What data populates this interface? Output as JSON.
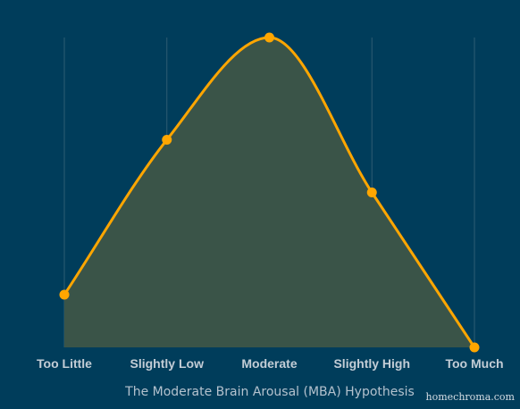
{
  "chart_data": {
    "type": "area",
    "title": "The Moderate Brain Arousal (MBA) Hypothesis",
    "xlabel": "",
    "ylabel": "",
    "categories": [
      "Too Little",
      "Slightly Low",
      "Moderate",
      "Slightly High",
      "Too Much"
    ],
    "series": [
      {
        "values": [
          17,
          67,
          100,
          50,
          0
        ]
      }
    ],
    "ylim": [
      0,
      100
    ],
    "grid": "vertical lines",
    "legend": "none",
    "smooth": true,
    "colors": {
      "background": "#003d5b",
      "line": "#ffa600",
      "marker": "#ffa600",
      "fill": "#3a5448",
      "grid": "#2e5d73"
    }
  },
  "watermark": "homechroma.com"
}
